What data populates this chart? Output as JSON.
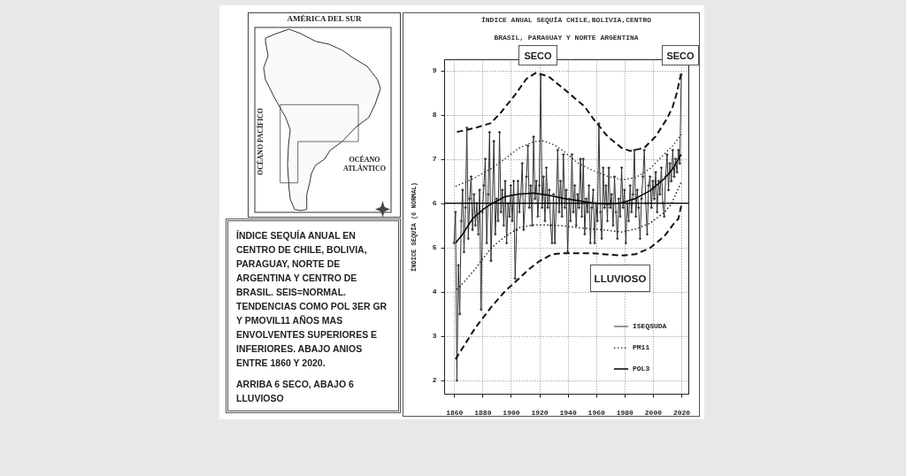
{
  "chart_data": {
    "type": "line",
    "title": "ÍNDICE ANUAL SEQUÍA CHILE,BOLIVIA,CENTRO BRASIL, PARAGUAY Y NORTE ARGENTINA",
    "ylabel": "ÍNDICE SEQUÍA (6 NORMAL)",
    "xlim": [
      1853,
      2025
    ],
    "xticks": [
      1860,
      1880,
      1900,
      1920,
      1940,
      1960,
      1980,
      2000,
      2020
    ],
    "ylim": [
      1.7,
      9.25
    ],
    "yticks": [
      2,
      3,
      4,
      5,
      6,
      7,
      8,
      9
    ],
    "grid": true,
    "legend": "bottom right",
    "ref_lines": [
      {
        "axis": "y",
        "value": 6,
        "color": "#000000"
      }
    ],
    "annotations": [
      "SECO",
      "SECO",
      "LLUVIOSO",
      "ÍNDICE SEQUÍA ANUAL EN CENTRO DE CHILE, BOLIVIA, PARAGUAY, NORTE DE ARGENTINA Y CENTRO DE BRASIL. SEIS=NORMAL. TENDENCIAS COMO POL 3ER GR Y PMOVIL11 AÑOS MAS ENVOLVENTES SUPERIORES E INFERIORES. ABAJO ANIOS ENTRE 1860 Y 2020.",
      "ARRIBA 6 SECO,  ABAJO 6 LLUVIOSO",
      "AMÉRICA DEL SUR",
      "OCÉANO PACÍFICO",
      "OCÉANO ATLÁNTICO"
    ],
    "series": [
      {
        "name": "ISEQSUDA",
        "color": "#333333",
        "line_style": "solid",
        "marker": "cross",
        "x": [
          1860,
          1861,
          1862,
          1863,
          1864,
          1865,
          1866,
          1867,
          1868,
          1869,
          1870,
          1871,
          1872,
          1873,
          1874,
          1875,
          1876,
          1877,
          1878,
          1879,
          1880,
          1881,
          1882,
          1883,
          1884,
          1885,
          1886,
          1887,
          1888,
          1889,
          1890,
          1891,
          1892,
          1893,
          1894,
          1895,
          1896,
          1897,
          1898,
          1899,
          1900,
          1901,
          1902,
          1903,
          1904,
          1905,
          1906,
          1907,
          1908,
          1909,
          1910,
          1911,
          1912,
          1913,
          1914,
          1915,
          1916,
          1917,
          1918,
          1919,
          1920,
          1921,
          1922,
          1923,
          1924,
          1925,
          1926,
          1927,
          1928,
          1929,
          1930,
          1931,
          1932,
          1933,
          1934,
          1935,
          1936,
          1937,
          1938,
          1939,
          1940,
          1941,
          1942,
          1943,
          1944,
          1945,
          1946,
          1947,
          1948,
          1949,
          1950,
          1951,
          1952,
          1953,
          1954,
          1955,
          1956,
          1957,
          1958,
          1959,
          1960,
          1961,
          1962,
          1963,
          1964,
          1965,
          1966,
          1967,
          1968,
          1969,
          1970,
          1971,
          1972,
          1973,
          1974,
          1975,
          1976,
          1977,
          1978,
          1979,
          1980,
          1981,
          1982,
          1983,
          1984,
          1985,
          1986,
          1987,
          1988,
          1989,
          1990,
          1991,
          1992,
          1993,
          1994,
          1995,
          1996,
          1997,
          1998,
          1999,
          2000,
          2001,
          2002,
          2003,
          2004,
          2005,
          2006,
          2007,
          2008,
          2009,
          2010,
          2011,
          2012,
          2013,
          2014,
          2015,
          2016,
          2017,
          2018,
          2019,
          2020
        ],
        "values": [
          5.1,
          5.8,
          2.0,
          4.6,
          3.5,
          5.6,
          6.3,
          4.9,
          5.9,
          7.7,
          5.2,
          6.1,
          6.6,
          5.4,
          6.2,
          5.5,
          6.0,
          5.3,
          6.3,
          3.6,
          5.8,
          6.4,
          7.0,
          5.1,
          6.2,
          7.6,
          4.7,
          6.0,
          7.4,
          5.3,
          6.1,
          5.6,
          7.6,
          5.8,
          6.3,
          5.5,
          6.5,
          5.1,
          6.0,
          5.7,
          6.4,
          5.6,
          6.5,
          4.3,
          5.4,
          6.5,
          5.8,
          6.2,
          6.9,
          5.4,
          6.0,
          6.6,
          7.3,
          5.9,
          6.4,
          5.5,
          7.5,
          6.1,
          6.5,
          5.7,
          6.4,
          8.9,
          5.9,
          6.6,
          5.6,
          6.8,
          5.9,
          6.3,
          5.5,
          5.1,
          6.2,
          5.1,
          6.0,
          7.2,
          5.8,
          6.5,
          5.7,
          7.1,
          5.9,
          6.3,
          4.9,
          6.1,
          5.6,
          7.1,
          5.8,
          6.4,
          5.5,
          6.2,
          5.9,
          7.0,
          5.7,
          7.0,
          5.3,
          6.1,
          5.8,
          6.4,
          5.1,
          5.9,
          6.3,
          5.1,
          6.0,
          5.6,
          7.8,
          5.8,
          5.2,
          6.8,
          5.9,
          6.4,
          5.6,
          6.8,
          5.9,
          6.2,
          5.5,
          6.6,
          5.8,
          5.2,
          6.1,
          5.7,
          6.8,
          5.9,
          6.3,
          5.1,
          6.0,
          5.6,
          6.4,
          5.8,
          6.2,
          7.2,
          5.7,
          6.3,
          5.9,
          5.2,
          6.1,
          6.6,
          7.2,
          6.0,
          5.3,
          6.4,
          6.6,
          5.9,
          6.5,
          6.1,
          6.7,
          5.8,
          6.5,
          6.2,
          6.8,
          6.0,
          5.7,
          6.6,
          7.1,
          6.3,
          6.9,
          6.5,
          7.2,
          6.6,
          7.0,
          6.7,
          7.2,
          6.9,
          8.9
        ]
      },
      {
        "name": "PM11",
        "color": "#222222",
        "line_style": "dotted",
        "x": [
          1861,
          1866,
          1875,
          1886,
          1896,
          1906,
          1916,
          1923,
          1931,
          1937,
          1947,
          1957,
          1968,
          1978,
          1988,
          1998,
          2008,
          2014,
          2020
        ],
        "values": [
          6.38,
          6.45,
          6.58,
          6.78,
          7.01,
          7.25,
          7.39,
          7.41,
          7.31,
          7.18,
          6.91,
          6.75,
          6.61,
          6.53,
          6.58,
          6.78,
          7.11,
          7.3,
          7.55
        ]
      },
      {
        "name": "POL3",
        "color": "#000000",
        "line_style": "solid",
        "x": [
          1861,
          1866,
          1873,
          1880,
          1886,
          1896,
          1906,
          1916,
          1927,
          1937,
          1947,
          1957,
          1968,
          1978,
          1988,
          1998,
          2008,
          2014,
          2020
        ],
        "values": [
          5.1,
          5.3,
          5.65,
          5.85,
          5.98,
          6.15,
          6.21,
          6.23,
          6.18,
          6.11,
          6.06,
          6.01,
          5.98,
          6.01,
          6.11,
          6.28,
          6.55,
          6.78,
          7.1
        ]
      },
      {
        "color": "#222222",
        "line_style": "dotted",
        "x": [
          1862,
          1867,
          1875,
          1886,
          1896,
          1906,
          1916,
          1927,
          1937,
          1947,
          1957,
          1968,
          1978,
          1988,
          1998,
          2008,
          2013,
          2020
        ],
        "values": [
          4.05,
          4.22,
          4.52,
          4.99,
          5.25,
          5.45,
          5.51,
          5.51,
          5.49,
          5.45,
          5.42,
          5.39,
          5.35,
          5.42,
          5.55,
          5.79,
          5.98,
          6.48
        ]
      },
      {
        "color": "#111111",
        "line_style": "dashed",
        "x": [
          1862,
          1875,
          1886,
          1893,
          1903,
          1911,
          1918,
          1927,
          1940,
          1952,
          1958,
          1968,
          1978,
          1984,
          1994,
          2002,
          2010,
          2014,
          2017,
          2020
        ],
        "values": [
          7.61,
          7.7,
          7.81,
          8.05,
          8.45,
          8.81,
          8.95,
          8.85,
          8.51,
          8.18,
          7.91,
          7.51,
          7.25,
          7.18,
          7.25,
          7.51,
          7.91,
          8.18,
          8.5,
          8.95
        ]
      },
      {
        "color": "#111111",
        "line_style": "dashed",
        "x": [
          1861,
          1875,
          1886,
          1896,
          1902,
          1912,
          1920,
          1929,
          1937,
          1957,
          1978,
          1988,
          1998,
          2008,
          2015,
          2018,
          2020
        ],
        "values": [
          2.48,
          3.19,
          3.65,
          4.02,
          4.19,
          4.49,
          4.69,
          4.85,
          4.87,
          4.87,
          4.82,
          4.85,
          4.99,
          5.25,
          5.55,
          5.65,
          5.95
        ]
      }
    ]
  }
}
